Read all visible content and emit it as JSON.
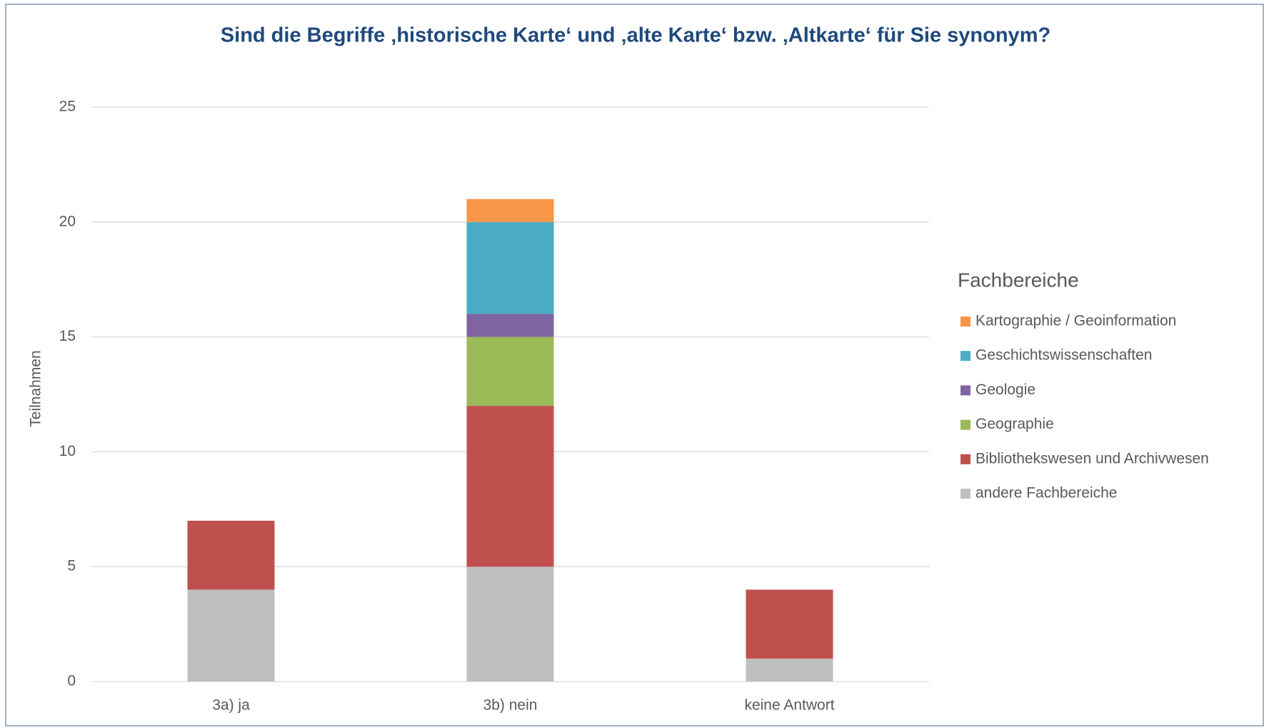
{
  "chart_data": {
    "type": "bar",
    "stacked": true,
    "title": "Sind die Begriffe ‚historische Karte‘ und ‚alte Karte‘ bzw. ‚Altkarte‘ für Sie synonym?",
    "y_label": "Teilnahmen",
    "legend_title": "Fachbereiche",
    "categories": [
      "3a) ja",
      "3b) nein",
      "keine Antwort"
    ],
    "series": [
      {
        "name": "andere Fachbereiche",
        "color": "#bfbfbf",
        "values": [
          4,
          5,
          1
        ]
      },
      {
        "name": "Bibliothekswesen und Archivwesen",
        "color": "#c0504d",
        "values": [
          3,
          7,
          3
        ]
      },
      {
        "name": "Geographie",
        "color": "#9bbb59",
        "values": [
          0,
          3,
          0
        ]
      },
      {
        "name": "Geologie",
        "color": "#8064a2",
        "values": [
          0,
          1,
          0
        ]
      },
      {
        "name": "Geschichtswissenschaften",
        "color": "#4bacc6",
        "values": [
          0,
          4,
          0
        ]
      },
      {
        "name": "Kartographie / Geoinformation",
        "color": "#f79646",
        "values": [
          0,
          1,
          0
        ]
      }
    ],
    "ylim": [
      0,
      25
    ],
    "yticks": [
      0,
      5,
      10,
      15,
      20,
      25
    ],
    "grid": true,
    "legend": "right"
  }
}
